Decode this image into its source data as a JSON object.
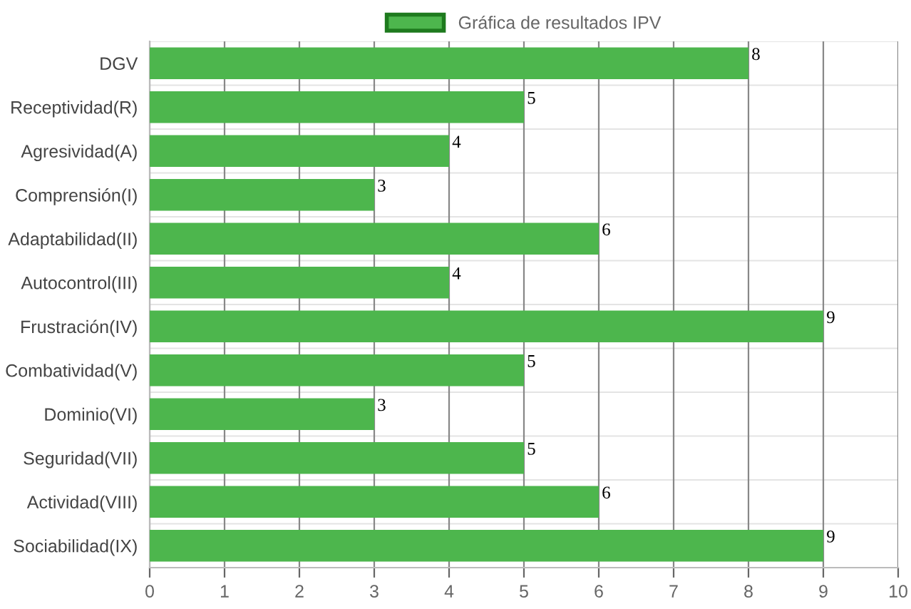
{
  "chart_data": {
    "type": "bar",
    "orientation": "horizontal",
    "categories": [
      "DGV",
      "Receptividad(R)",
      "Agresividad(A)",
      "Comprensión(I)",
      "Adaptabilidad(II)",
      "Autocontrol(III)",
      "Frustración(IV)",
      "Combatividad(V)",
      "Dominio(VI)",
      "Seguridad(VII)",
      "Actividad(VIII)",
      "Sociabilidad(IX)"
    ],
    "series": [
      {
        "name": "Gráfica de resultados IPV",
        "color": "#4db64d",
        "values": [
          8,
          5,
          4,
          3,
          6,
          4,
          9,
          5,
          3,
          5,
          6,
          9
        ]
      }
    ],
    "xlim": [
      0,
      10
    ],
    "xticks": [
      0,
      1,
      2,
      3,
      4,
      5,
      6,
      7,
      8,
      9,
      10
    ],
    "grid": true,
    "legend": "top",
    "data_labels": true
  }
}
